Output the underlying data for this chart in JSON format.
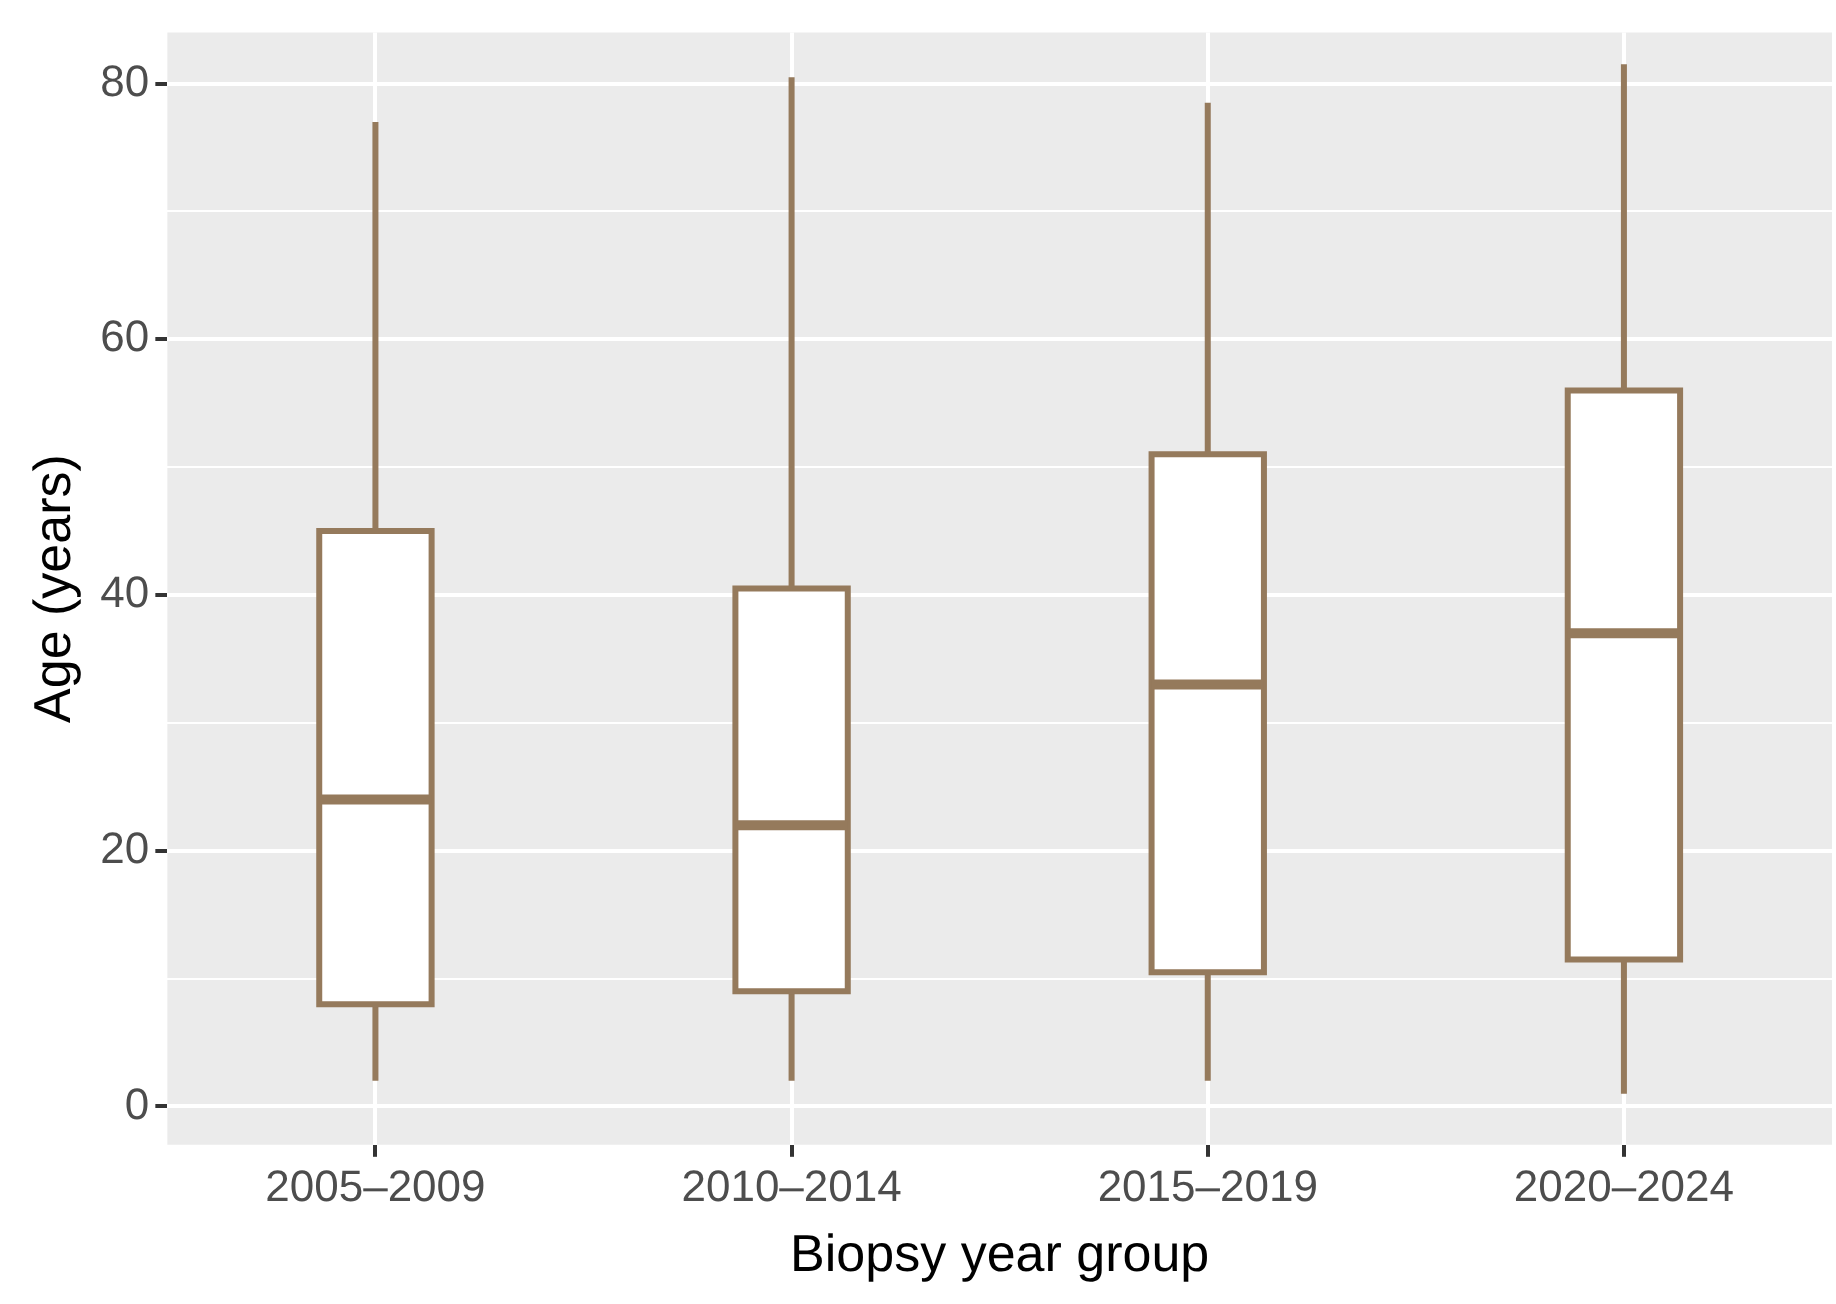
{
  "chart_data": {
    "type": "box",
    "xlabel": "Biopsy year group",
    "ylabel": "Age (years)",
    "categories": [
      "2005–2009",
      "2010–2014",
      "2015–2019",
      "2020–2024"
    ],
    "boxes": [
      {
        "low": 2,
        "q1": 8,
        "median": 24,
        "q3": 45,
        "high": 77
      },
      {
        "low": 2,
        "q1": 9,
        "median": 22,
        "q3": 40.5,
        "high": 80.5
      },
      {
        "low": 2,
        "q1": 10.5,
        "median": 33,
        "q3": 51,
        "high": 78.5
      },
      {
        "low": 1,
        "q1": 11.5,
        "median": 37,
        "q3": 56,
        "high": 81.5
      }
    ],
    "color": "#957a5c",
    "ylim": [
      -3,
      84
    ],
    "yticks": [
      0,
      {
        "value": 10,
        "label": null
      },
      20,
      {
        "value": 30,
        "label": null
      },
      40,
      {
        "value": 50,
        "label": null
      },
      60,
      {
        "value": 70,
        "label": null
      },
      80
    ],
    "grid": true
  }
}
